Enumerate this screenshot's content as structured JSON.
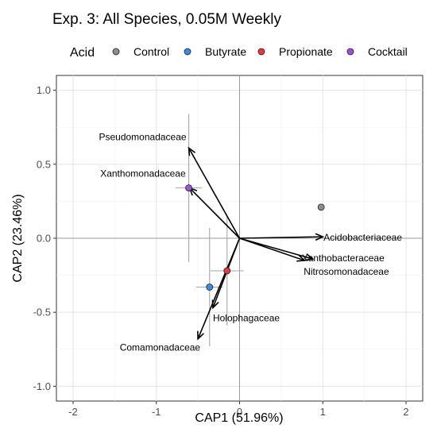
{
  "chart_data": {
    "type": "scatter",
    "title": "Exp. 3: All Species, 0.05M Weekly",
    "xlabel": "CAP1 (51.96%)",
    "ylabel": "CAP2 (23.46%)",
    "xlim": [
      -2.2,
      2.2
    ],
    "ylim": [
      -1.1,
      1.1
    ],
    "x_ticks": [
      -2,
      -1,
      0,
      1,
      2
    ],
    "x_tick_labels": [
      "-2",
      "-1",
      "0",
      "1",
      "2"
    ],
    "y_ticks": [
      -1.0,
      -0.5,
      0.0,
      0.5,
      1.0
    ],
    "y_tick_labels": [
      "-1.0",
      "-0.5",
      "0.0",
      "0.5",
      "1.0"
    ],
    "grid": true,
    "legend": {
      "title": "Acid",
      "placement": "top",
      "entries": [
        {
          "label": "Control",
          "color": "#8c8c8c"
        },
        {
          "label": "Butyrate",
          "color": "#3a8de0"
        },
        {
          "label": "Propionate",
          "color": "#e8383b"
        },
        {
          "label": "Cocktail",
          "color": "#a24fe0"
        }
      ]
    },
    "series": [
      {
        "name": "Control",
        "x": 0.98,
        "y": 0.21,
        "xerr": 0.02,
        "yerr": 0.02
      },
      {
        "name": "Butyrate",
        "x": -0.36,
        "y": -0.33,
        "xerr": 0.16,
        "yerr": 0.4
      },
      {
        "name": "Propionate",
        "x": -0.15,
        "y": -0.22,
        "xerr": 0.2,
        "yerr": 0.37
      },
      {
        "name": "Cocktail",
        "x": -0.61,
        "y": 0.34,
        "xerr": 0.16,
        "yerr": 0.5
      }
    ],
    "vectors": [
      {
        "label": "Pseudomonadaceae",
        "x": -0.61,
        "y": 0.61
      },
      {
        "label": "Xanthomonadaceae",
        "x": -0.6,
        "y": 0.34
      },
      {
        "label": "Acidobacteriaceae",
        "x": 1.0,
        "y": 0.01
      },
      {
        "label": "Xanthobacteraceae",
        "x": 0.88,
        "y": -0.14
      },
      {
        "label": "Nitrosomonadaceae",
        "x": 0.78,
        "y": -0.15
      },
      {
        "label": "Holophagaceae",
        "x": -0.32,
        "y": -0.47
      },
      {
        "label": "Comamonadaceae",
        "x": -0.5,
        "y": -0.68
      }
    ]
  }
}
